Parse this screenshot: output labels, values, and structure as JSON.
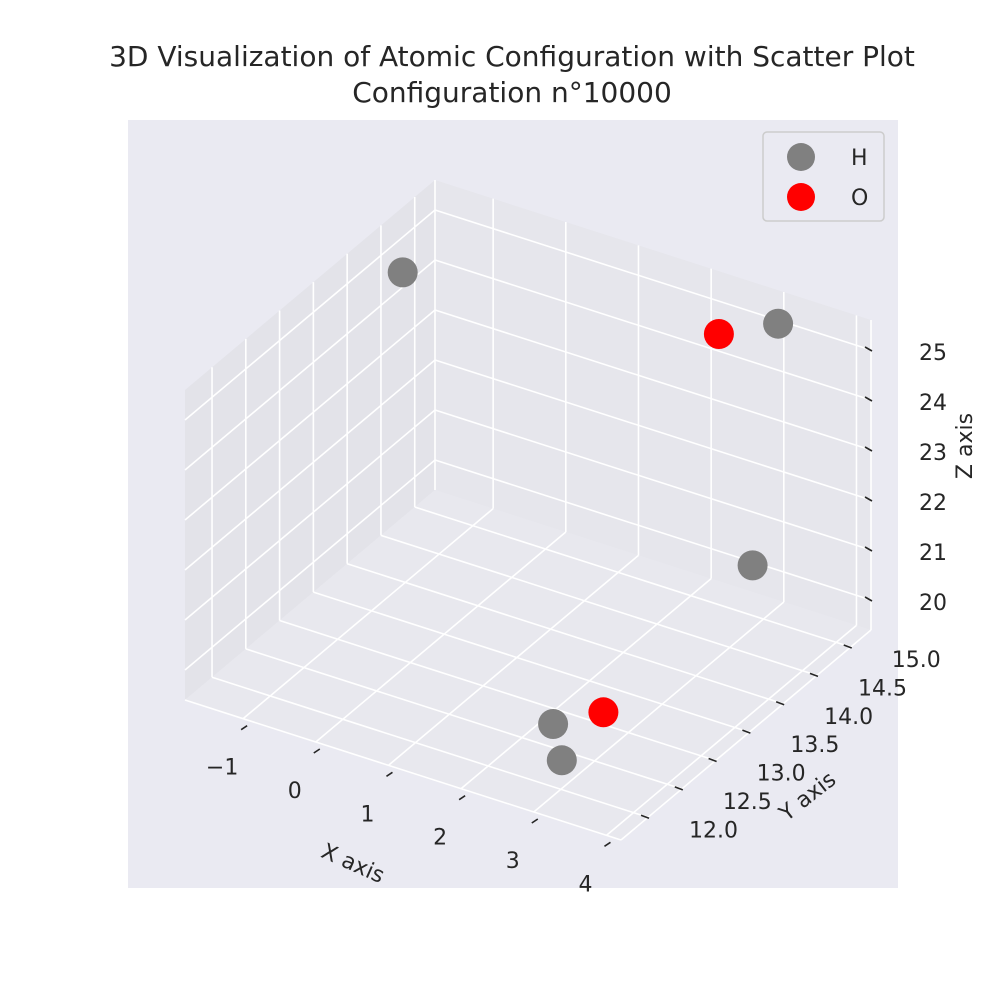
{
  "chart_data": {
    "type": "scatter",
    "title": "3D Visualization of Atomic Configuration with Scatter Plot",
    "subtitle": "Configuration n°10000",
    "xlabel": "X axis",
    "ylabel": "Y axis",
    "zlabel": "Z axis",
    "x_ticks": [
      "−1",
      "0",
      "1",
      "2",
      "3",
      "4"
    ],
    "y_ticks": [
      "12.0",
      "12.5",
      "13.0",
      "13.5",
      "14.0",
      "14.5",
      "15.0"
    ],
    "z_ticks": [
      "20",
      "21",
      "22",
      "23",
      "24",
      "25"
    ],
    "xlim": [
      -1.8,
      4.2
    ],
    "ylim": [
      11.6,
      15.3
    ],
    "zlim": [
      19.4,
      25.6
    ],
    "grid": true,
    "legend_position": "top-right",
    "series": [
      {
        "name": "H",
        "color": "#808080",
        "points": [
          {
            "x": -1.5,
            "y": 14.5,
            "z": 24.8
          },
          {
            "x": 3.2,
            "y": 15.0,
            "z": 25.4
          },
          {
            "x": 3.5,
            "y": 14.3,
            "z": 21.5
          },
          {
            "x": 2.8,
            "y": 12.1,
            "z": 20.5
          },
          {
            "x": 3.2,
            "y": 11.8,
            "z": 20.3
          }
        ]
      },
      {
        "name": "O",
        "color": "#ff0000",
        "points": [
          {
            "x": 2.2,
            "y": 15.2,
            "z": 24.5
          },
          {
            "x": 3.4,
            "y": 12.2,
            "z": 20.9
          }
        ]
      }
    ]
  }
}
